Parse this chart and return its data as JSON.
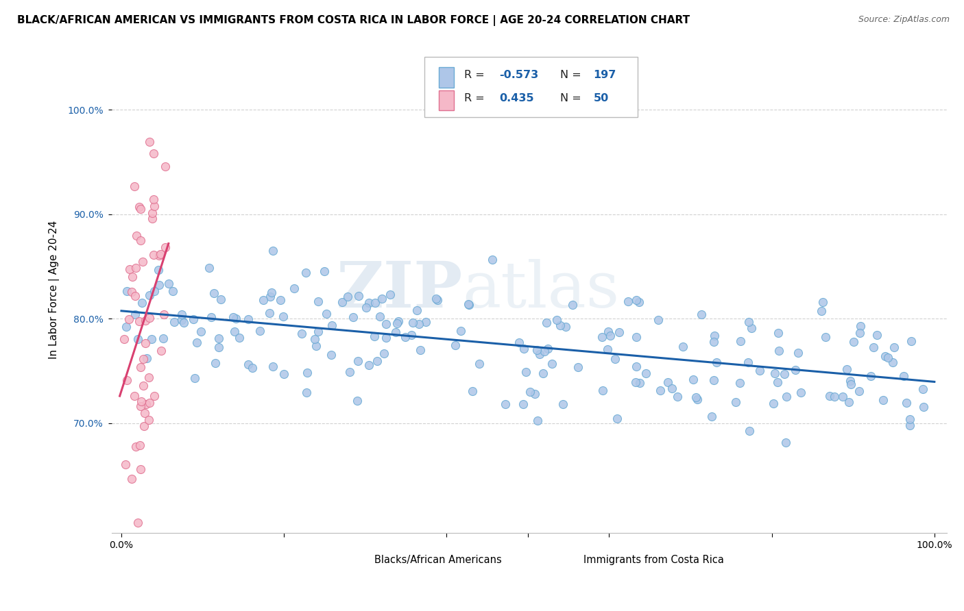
{
  "title": "BLACK/AFRICAN AMERICAN VS IMMIGRANTS FROM COSTA RICA IN LABOR FORCE | AGE 20-24 CORRELATION CHART",
  "source": "Source: ZipAtlas.com",
  "ylabel": "In Labor Force | Age 20-24",
  "blue_color": "#aec6e8",
  "blue_edge": "#6aaad4",
  "pink_color": "#f5b8c8",
  "pink_edge": "#e07090",
  "line_blue": "#1a5fa8",
  "line_pink": "#d94070",
  "watermark_zip": "ZIP",
  "watermark_atlas": "atlas",
  "blue_seed": 42,
  "pink_seed": 123,
  "blue_n": 197,
  "pink_n": 50,
  "r_blue": -0.573,
  "r_pink": 0.435
}
